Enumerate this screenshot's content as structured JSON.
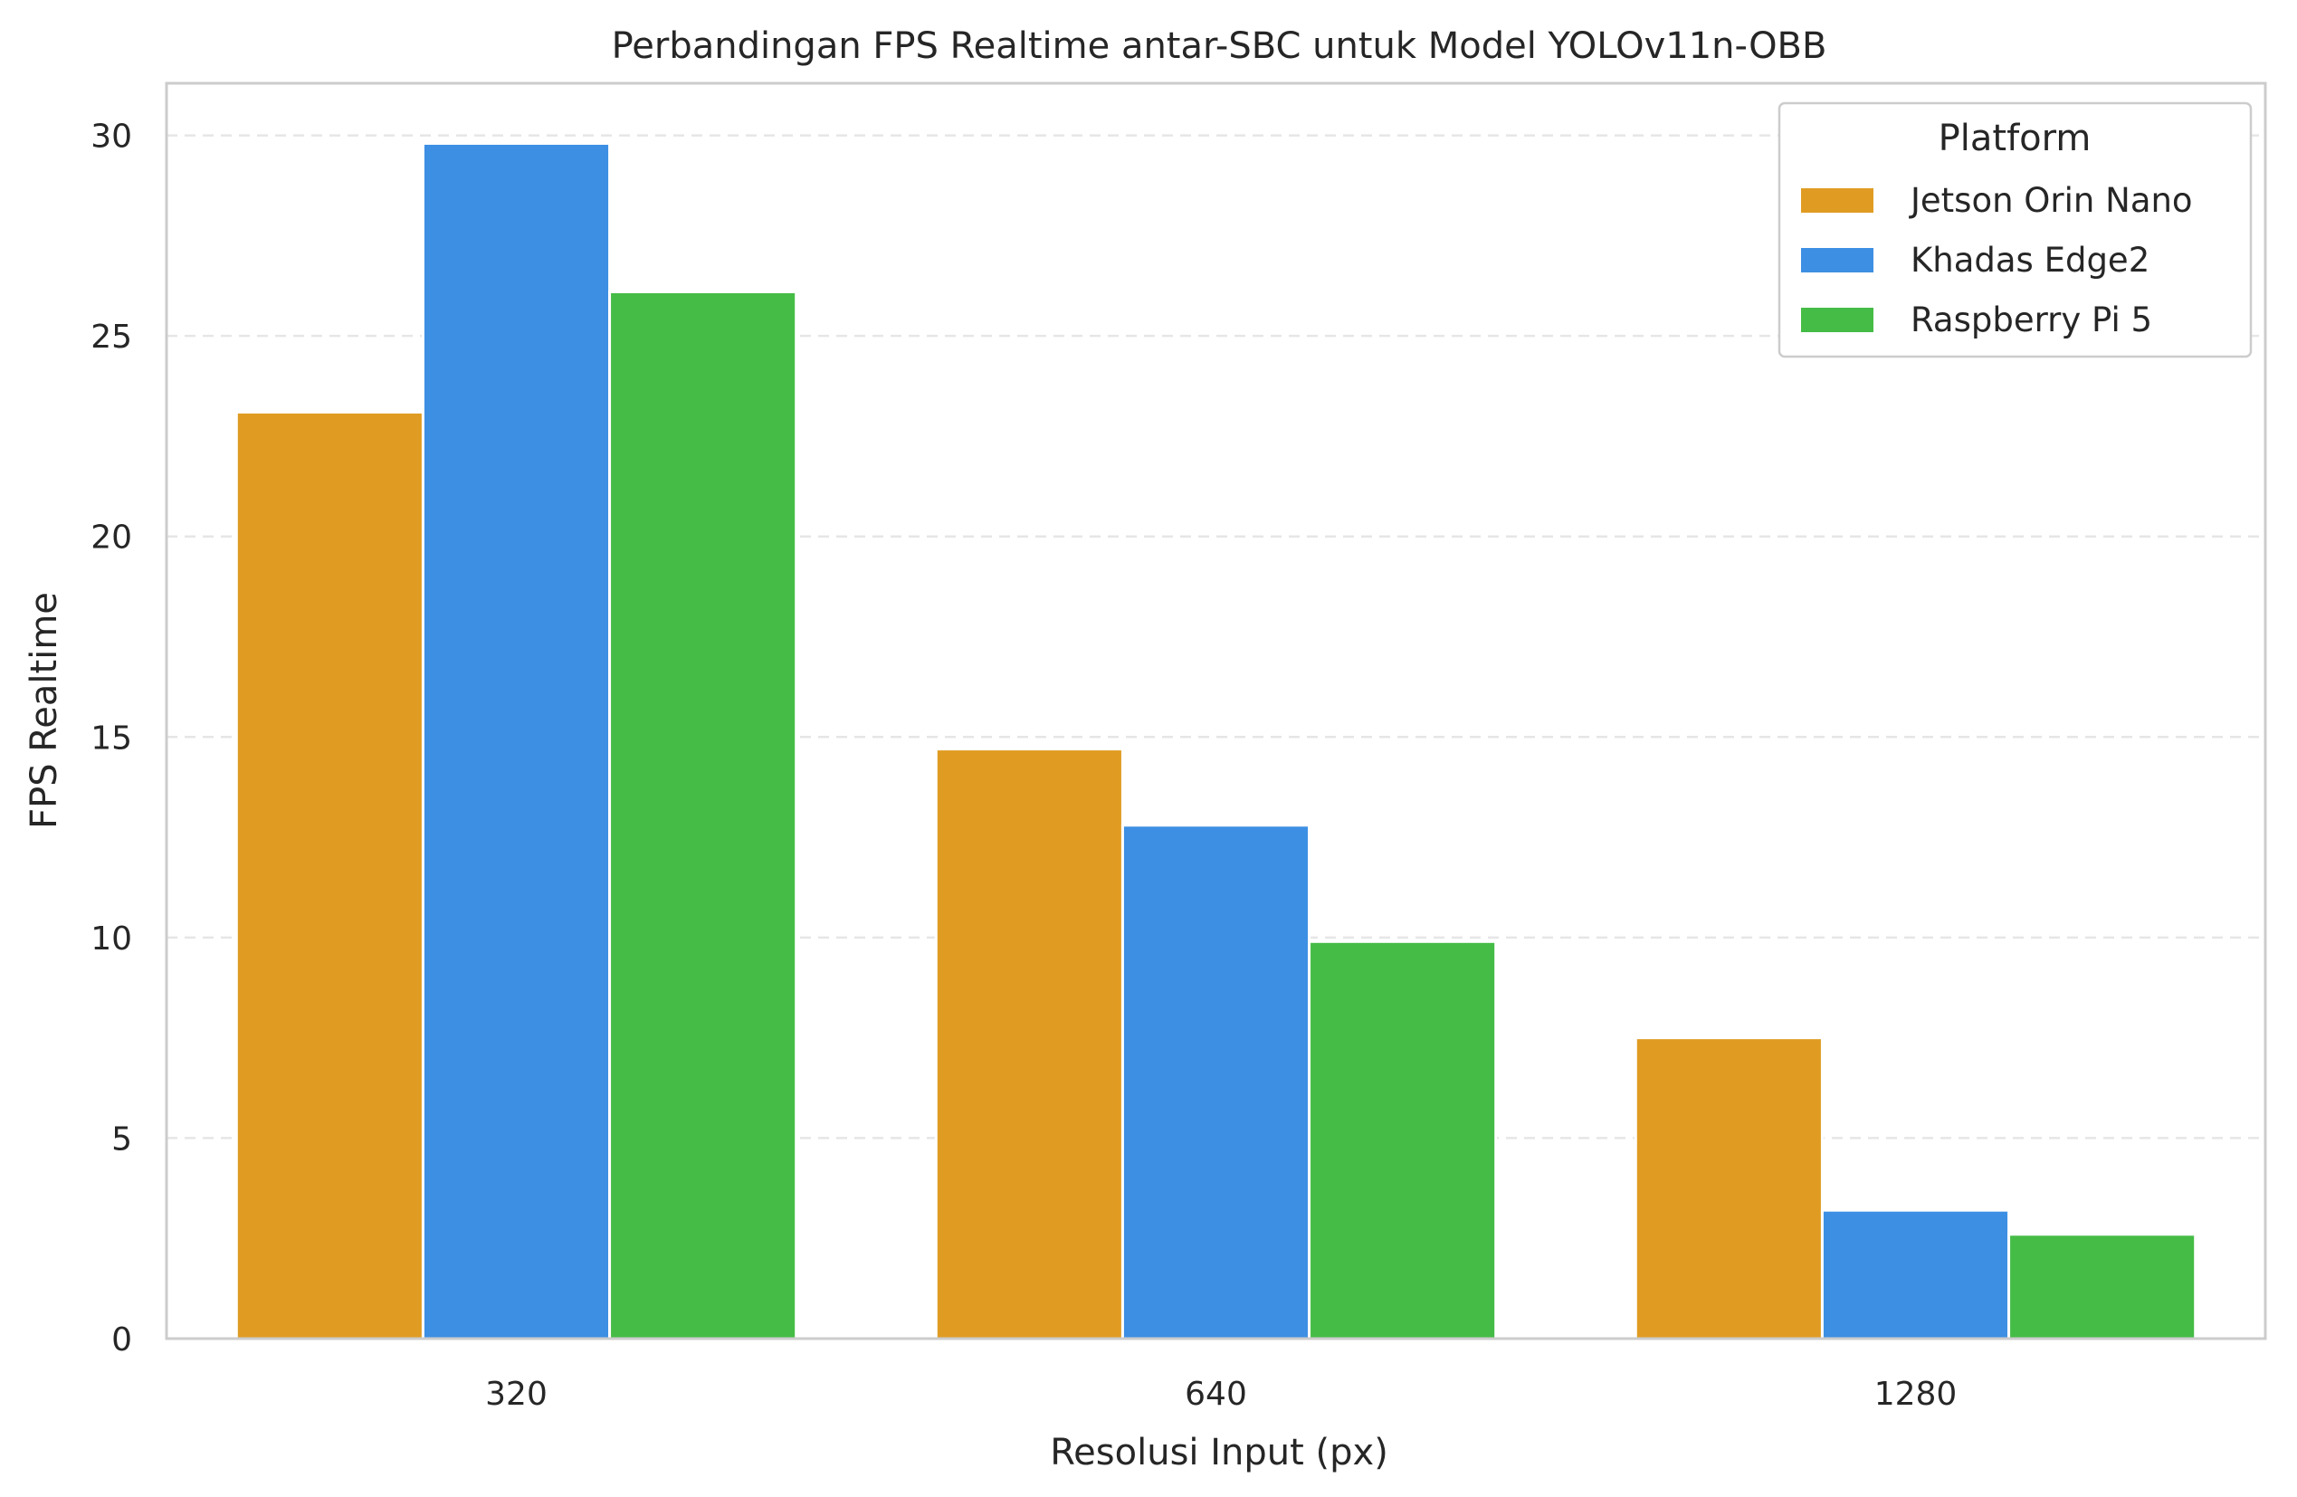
{
  "chart_data": {
    "type": "bar",
    "title": "Perbandingan FPS Realtime antar-SBC untuk Model YOLOv11n-OBB",
    "xlabel": "Resolusi Input (px)",
    "ylabel": "FPS Realtime",
    "categories": [
      "320",
      "640",
      "1280"
    ],
    "series": [
      {
        "name": "Jetson Orin Nano",
        "color": "#e09c22",
        "values": [
          23.1,
          14.7,
          7.5
        ]
      },
      {
        "name": "Khadas Edge2",
        "color": "#3d8fe3",
        "values": [
          29.8,
          12.8,
          3.2
        ]
      },
      {
        "name": "Raspberry Pi 5",
        "color": "#45bc46",
        "values": [
          26.1,
          9.9,
          2.6
        ]
      }
    ],
    "ylim": [
      0,
      31.3
    ],
    "yticks": [
      "0",
      "5",
      "10",
      "15",
      "20",
      "25",
      "30"
    ],
    "grid": "horizontal dashed",
    "legend": {
      "title": "Platform",
      "placement": "top-right"
    }
  }
}
